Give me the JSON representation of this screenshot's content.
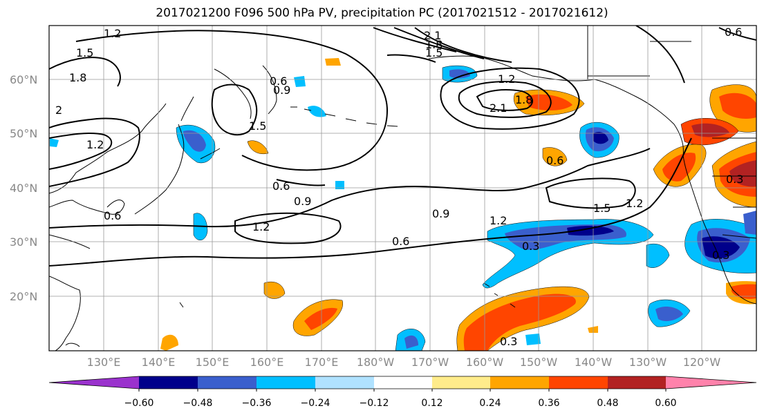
{
  "title": "2017021200 F096 500 hPa PV, precipitation PC (2017021512 - 2017021612)",
  "lat_labels": [
    "60°N",
    "50°N",
    "40°N",
    "30°N",
    "20°N"
  ],
  "lon_labels": [
    "130°E",
    "140°E",
    "150°E",
    "160°E",
    "170°E",
    "180°W",
    "170°W",
    "160°W",
    "150°W",
    "140°W",
    "130°W",
    "120°W"
  ],
  "colorbar": {
    "colors": [
      "#9a32cd",
      "#00008b",
      "#3a5fcd",
      "#00bfff",
      "#b0e2ff",
      "#ffffff",
      "#ffec8b",
      "#ffa500",
      "#ff4500",
      "#b22222",
      "#ff82ab"
    ],
    "tick_labels": [
      "−0.60",
      "−0.48",
      "−0.36",
      "−0.24",
      "−0.12",
      "0.12",
      "0.24",
      "0.36",
      "0.48",
      "0.60"
    ]
  },
  "contour_labels": [
    "1.2",
    "2.1",
    "1.8",
    "1.5",
    "1.5",
    "1.8",
    "2",
    "1.2",
    "0.6",
    "0.9",
    "1.5",
    "0.6",
    "0.9",
    "1.2",
    "0.6",
    "0.9",
    "1.2",
    "1.2",
    "1.8",
    "2.1",
    "0.6",
    "0.3",
    "1.5",
    "1.2",
    "0.3",
    "0.3",
    "0.6",
    "0.3",
    "0.6"
  ]
}
